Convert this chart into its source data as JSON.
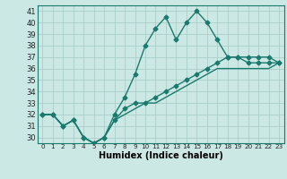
{
  "title": "",
  "xlabel": "Humidex (Indice chaleur)",
  "ylabel": "",
  "bg_color": "#cce8e4",
  "line_color": "#1a7a6e",
  "grid_color": "#aaceca",
  "x_values": [
    0,
    1,
    2,
    3,
    4,
    5,
    6,
    7,
    8,
    9,
    10,
    11,
    12,
    13,
    14,
    15,
    16,
    17,
    18,
    19,
    20,
    21,
    22,
    23
  ],
  "series1": [
    32,
    32,
    31,
    31.5,
    30,
    29.5,
    30,
    32,
    33.5,
    35.5,
    38,
    39.5,
    40.5,
    38.5,
    40,
    41,
    40,
    38.5,
    37,
    37,
    37,
    37,
    37,
    36.5
  ],
  "series2": [
    32,
    32,
    31,
    31.5,
    30,
    29.5,
    30,
    31.5,
    32.5,
    33,
    33,
    33.5,
    34,
    34.5,
    35,
    35.5,
    36,
    36.5,
    37,
    37,
    36.5,
    36.5,
    36.5,
    36.5
  ],
  "series3": [
    32,
    32,
    31,
    31.5,
    30,
    29.5,
    30,
    31.5,
    32,
    32.5,
    33,
    33,
    33.5,
    34,
    34.5,
    35,
    35.5,
    36,
    36,
    36,
    36,
    36,
    36,
    36.5
  ],
  "ylim": [
    29.5,
    41.5
  ],
  "yticks": [
    30,
    31,
    32,
    33,
    34,
    35,
    36,
    37,
    38,
    39,
    40,
    41
  ],
  "xticks": [
    0,
    1,
    2,
    3,
    4,
    5,
    6,
    7,
    8,
    9,
    10,
    11,
    12,
    13,
    14,
    15,
    16,
    17,
    18,
    19,
    20,
    21,
    22,
    23
  ],
  "marker": "D",
  "marker_size": 2.5,
  "linewidth": 1.0
}
